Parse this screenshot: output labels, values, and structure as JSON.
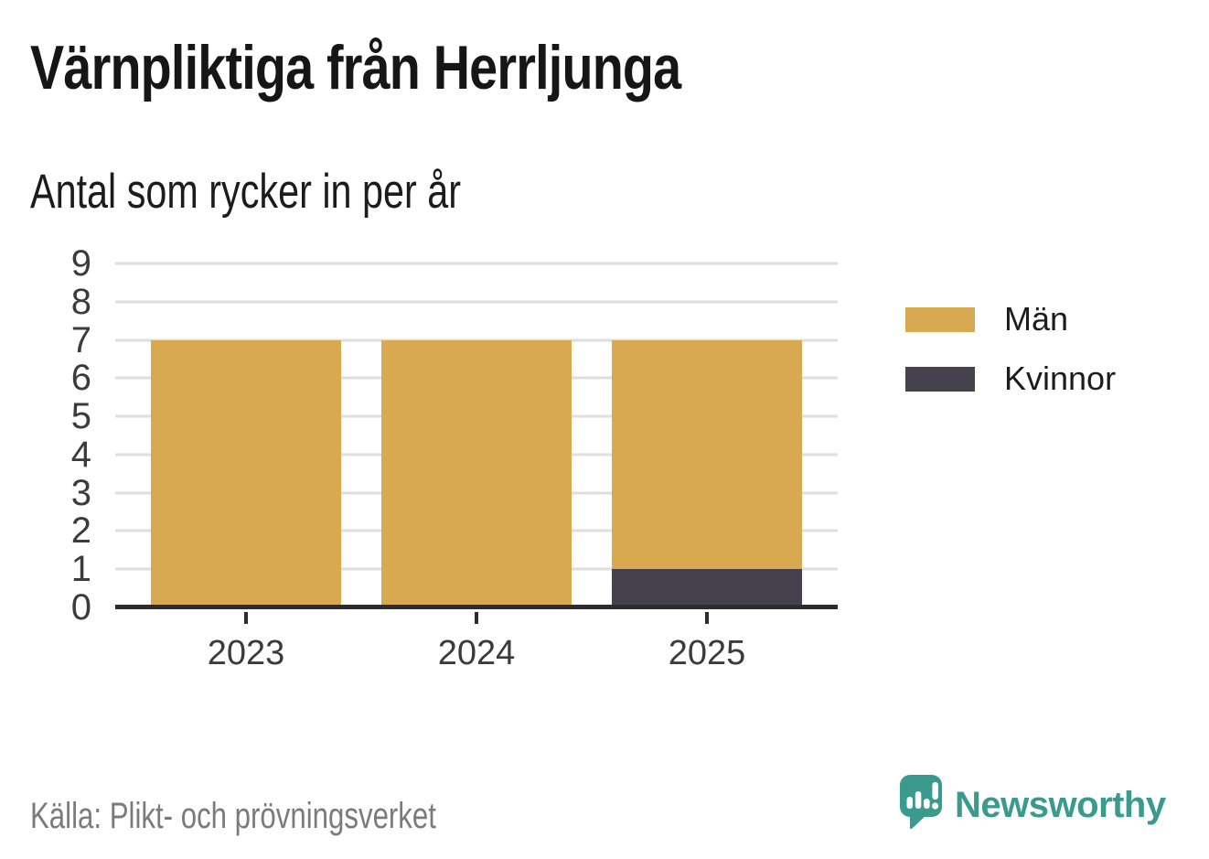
{
  "title": "Värnpliktiga från Herrljunga",
  "subtitle": "Antal som rycker in per år",
  "source": "Källa: Plikt- och prövningsverket",
  "brand": {
    "name": "Newsworthy",
    "icon": "speech-bubble-bar-chart-icon",
    "color": "#3b9a8e"
  },
  "colors": {
    "men": "#d9a951",
    "women": "#45424e",
    "axis": "#2e2c33",
    "grid": "#dedede",
    "tick_text": "#3b3b3b",
    "title_text": "#161616",
    "source_text": "#7b7b7b",
    "background": "#ffffff"
  },
  "chart_data": {
    "type": "bar",
    "stacked": true,
    "categories": [
      "2023",
      "2024",
      "2025"
    ],
    "series": [
      {
        "name": "Män",
        "color": "#d9a951",
        "values": [
          7,
          7,
          6
        ]
      },
      {
        "name": "Kvinnor",
        "color": "#45424e",
        "values": [
          0,
          0,
          1
        ]
      }
    ],
    "stack_totals": [
      7,
      7,
      7
    ],
    "title": "Värnpliktiga från Herrljunga",
    "subtitle": "Antal som rycker in per år",
    "xlabel": "",
    "ylabel": "",
    "ylim": [
      0,
      9
    ],
    "yticks": [
      0,
      1,
      2,
      3,
      4,
      5,
      6,
      7,
      8,
      9
    ],
    "grid": true,
    "legend_position": "right",
    "stack_order": "second-series-on-bottom"
  }
}
